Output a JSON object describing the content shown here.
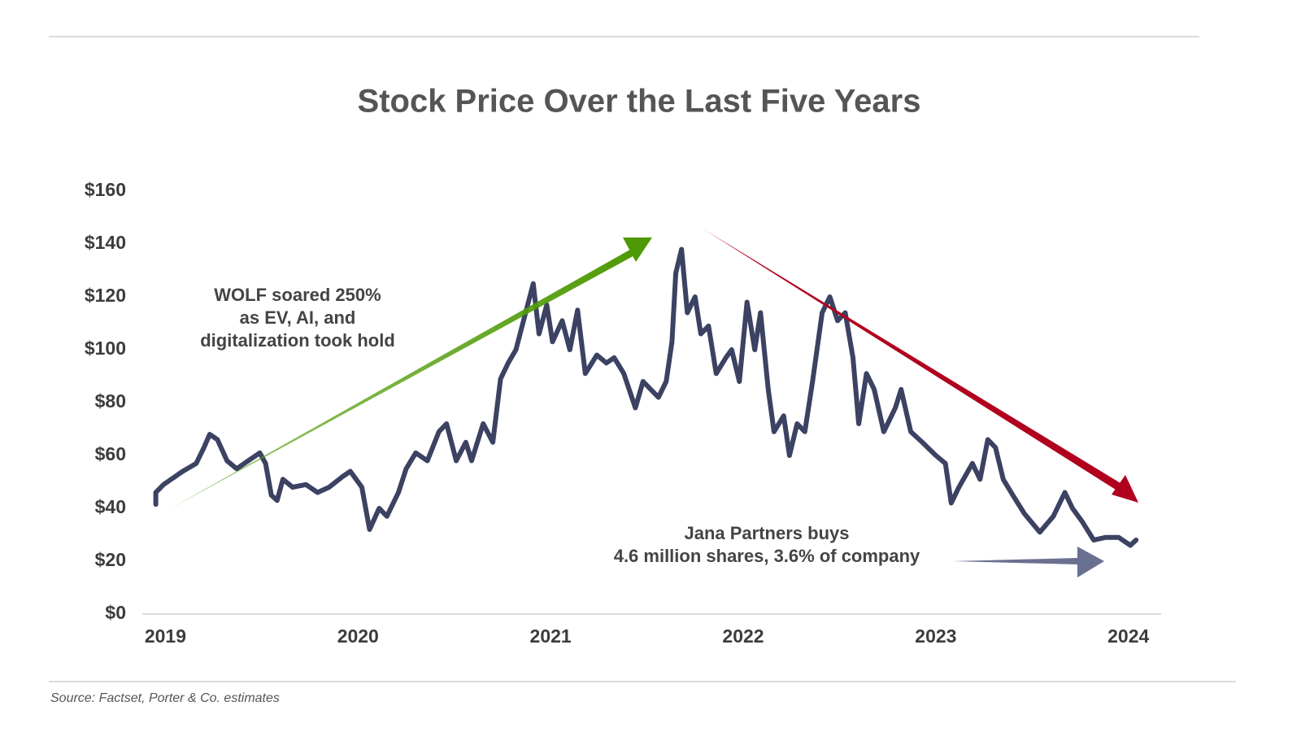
{
  "chart_data": {
    "type": "line",
    "title": "Stock Price Over the Last Five Years",
    "source": "Source: Factset, Porter & Co. estimates",
    "annotations": [
      {
        "lines": [
          "WOLF soared 250%",
          "as EV, AI, and",
          "digitalization took hold"
        ]
      },
      {
        "lines": [
          "Jana Partners buys",
          "4.6 million shares, 3.6% of company"
        ]
      }
    ],
    "xlim": [
      2018.88,
      2024.17
    ],
    "xticks": [
      2019,
      2020,
      2021,
      2022,
      2023,
      2024
    ],
    "ylim": [
      0,
      160
    ],
    "yticks": [
      {
        "value": 0,
        "label": "$0"
      },
      {
        "value": 20,
        "label": "$20"
      },
      {
        "value": 40,
        "label": "$40"
      },
      {
        "value": 60,
        "label": "$60"
      },
      {
        "value": 80,
        "label": "$80"
      },
      {
        "value": 100,
        "label": "$100"
      },
      {
        "value": 120,
        "label": "$120"
      },
      {
        "value": 140,
        "label": "$140"
      },
      {
        "value": 160,
        "label": "$160"
      }
    ],
    "series": [
      {
        "name": "WOLF",
        "color": "#3b4262",
        "x": [
          2018.95,
          2018.95,
          2018.99,
          2019.03,
          2019.09,
          2019.16,
          2019.2,
          2019.23,
          2019.27,
          2019.32,
          2019.37,
          2019.43,
          2019.49,
          2019.52,
          2019.55,
          2019.58,
          2019.61,
          2019.66,
          2019.73,
          2019.79,
          2019.85,
          2019.92,
          2019.96,
          2020.02,
          2020.06,
          2020.11,
          2020.15,
          2020.21,
          2020.25,
          2020.3,
          2020.36,
          2020.42,
          2020.46,
          2020.51,
          2020.56,
          2020.59,
          2020.65,
          2020.7,
          2020.74,
          2020.78,
          2020.82,
          2020.87,
          2020.91,
          2020.94,
          2020.98,
          2021.01,
          2021.06,
          2021.1,
          2021.14,
          2021.18,
          2021.24,
          2021.29,
          2021.33,
          2021.38,
          2021.44,
          2021.48,
          2021.52,
          2021.56,
          2021.6,
          2021.63,
          2021.65,
          2021.68,
          2021.71,
          2021.75,
          2021.78,
          2021.82,
          2021.86,
          2021.91,
          2021.94,
          2021.98,
          2022.02,
          2022.06,
          2022.09,
          2022.13,
          2022.16,
          2022.21,
          2022.24,
          2022.28,
          2022.32,
          2022.36,
          2022.41,
          2022.45,
          2022.49,
          2022.53,
          2022.57,
          2022.6,
          2022.64,
          2022.68,
          2022.73,
          2022.79,
          2022.82,
          2022.87,
          2022.93,
          2023.0,
          2023.05,
          2023.08,
          2023.12,
          2023.19,
          2023.23,
          2023.27,
          2023.31,
          2023.35,
          2023.4,
          2023.46,
          2023.54,
          2023.61,
          2023.67,
          2023.71,
          2023.76,
          2023.82,
          2023.88,
          2023.95,
          2024.01,
          2024.04
        ],
        "values": [
          41.5,
          46,
          49,
          51,
          54,
          57,
          63,
          68,
          66,
          58,
          55,
          58,
          61,
          57,
          45,
          43,
          51,
          48,
          49,
          46,
          48,
          52,
          54,
          48,
          32,
          40,
          37,
          46,
          55,
          61,
          58,
          69,
          72,
          58,
          65,
          58,
          72,
          65,
          89,
          95,
          100,
          114,
          125,
          106,
          117,
          103,
          111,
          100,
          115,
          91,
          98,
          95,
          97,
          91,
          78,
          88,
          85,
          82,
          88,
          103,
          129,
          138,
          114,
          120,
          106,
          109,
          91,
          97,
          100,
          88,
          118,
          100,
          114,
          85,
          69,
          75,
          60,
          72,
          69,
          88,
          114,
          120,
          111,
          114,
          97,
          72,
          91,
          85,
          69,
          78,
          85,
          69,
          65,
          60,
          57,
          42,
          48,
          57,
          51,
          66,
          63,
          51,
          45,
          38,
          31,
          37,
          46,
          40,
          35,
          28,
          29,
          29,
          26,
          28
        ]
      }
    ]
  }
}
